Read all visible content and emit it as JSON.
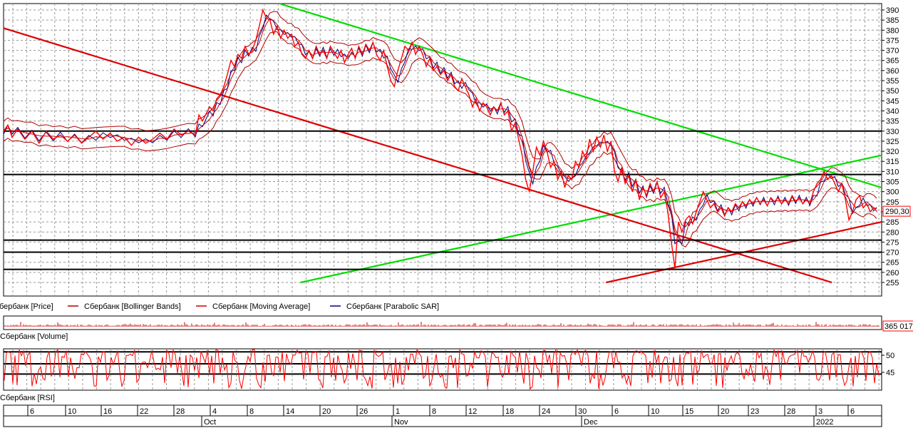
{
  "chart_data": [
    {
      "type": "line",
      "panel": "price",
      "ylim": [
        255,
        392
      ],
      "y_ticks": [
        390,
        385,
        380,
        375,
        370,
        365,
        360,
        355,
        350,
        345,
        340,
        335,
        330,
        325,
        320,
        315,
        310,
        305,
        300,
        295,
        290,
        285,
        280,
        275,
        270,
        265,
        260,
        255
      ],
      "last_price_label": "290,30",
      "legend": [
        {
          "label": "Сбербанк [Price]",
          "color": "#ff0000"
        },
        {
          "label": "Сбербанк [Bollinger Bands]",
          "color": "#b00000"
        },
        {
          "label": "Сбербанк [Moving Average]",
          "color": "#cc0000"
        },
        {
          "label": "Сбербанк [Parabolic SAR]",
          "color": "#000080"
        }
      ],
      "series": [
        {
          "name": "Сбербанк [Price]",
          "color": "#ff0000",
          "points": [
            [
              0,
              330
            ],
            [
              6,
              333
            ],
            [
              12,
              327
            ],
            [
              20,
              331
            ],
            [
              30,
              326
            ],
            [
              40,
              330
            ],
            [
              50,
              324
            ],
            [
              60,
              330
            ],
            [
              70,
              326
            ],
            [
              80,
              328
            ],
            [
              90,
              325
            ],
            [
              100,
              328
            ],
            [
              110,
              324
            ],
            [
              120,
              327
            ],
            [
              130,
              330
            ],
            [
              140,
              326
            ],
            [
              150,
              329
            ],
            [
              160,
              325
            ],
            [
              170,
              327
            ],
            [
              180,
              323
            ],
            [
              190,
              327
            ],
            [
              200,
              324
            ],
            [
              210,
              326
            ],
            [
              220,
              329
            ],
            [
              230,
              326
            ],
            [
              240,
              331
            ],
            [
              250,
              328
            ],
            [
              260,
              330
            ],
            [
              270,
              328
            ],
            [
              275,
              338
            ],
            [
              280,
              335
            ],
            [
              290,
              342
            ],
            [
              295,
              340
            ],
            [
              300,
              346
            ],
            [
              305,
              348
            ],
            [
              310,
              352
            ],
            [
              315,
              358
            ],
            [
              320,
              365
            ],
            [
              325,
              362
            ],
            [
              330,
              368
            ],
            [
              335,
              366
            ],
            [
              340,
              372
            ],
            [
              345,
              368
            ],
            [
              350,
              370
            ],
            [
              355,
              375
            ],
            [
              360,
              382
            ],
            [
              365,
              390
            ],
            [
              370,
              386
            ],
            [
              375,
              385
            ],
            [
              380,
              378
            ],
            [
              385,
              382
            ],
            [
              390,
              376
            ],
            [
              395,
              380
            ],
            [
              400,
              376
            ],
            [
              405,
              378
            ],
            [
              410,
              372
            ],
            [
              415,
              374
            ],
            [
              420,
              368
            ],
            [
              425,
              366
            ],
            [
              430,
              370
            ],
            [
              435,
              366
            ],
            [
              440,
              372
            ],
            [
              445,
              368
            ],
            [
              450,
              370
            ],
            [
              455,
              366
            ],
            [
              460,
              372
            ],
            [
              465,
              369
            ],
            [
              470,
              366
            ],
            [
              475,
              370
            ],
            [
              480,
              364
            ],
            [
              485,
              368
            ],
            [
              490,
              371
            ],
            [
              495,
              366
            ],
            [
              500,
              372
            ],
            [
              505,
              368
            ],
            [
              510,
              373
            ],
            [
              515,
              370
            ],
            [
              520,
              374
            ],
            [
              525,
              368
            ],
            [
              530,
              365
            ],
            [
              535,
              370
            ],
            [
              540,
              362
            ],
            [
              545,
              355
            ],
            [
              550,
              352
            ],
            [
              555,
              360
            ],
            [
              560,
              366
            ],
            [
              565,
              372
            ],
            [
              570,
              370
            ],
            [
              575,
              374
            ],
            [
              580,
              368
            ],
            [
              585,
              372
            ],
            [
              590,
              368
            ],
            [
              595,
              362
            ],
            [
              600,
              366
            ],
            [
              605,
              360
            ],
            [
              610,
              362
            ],
            [
              615,
              358
            ],
            [
              620,
              360
            ],
            [
              625,
              355
            ],
            [
              630,
              358
            ],
            [
              635,
              352
            ],
            [
              640,
              350
            ],
            [
              645,
              356
            ],
            [
              650,
              352
            ],
            [
              655,
              348
            ],
            [
              660,
              342
            ],
            [
              665,
              346
            ],
            [
              670,
              340
            ],
            [
              675,
              344
            ],
            [
              680,
              342
            ],
            [
              685,
              338
            ],
            [
              690,
              342
            ],
            [
              695,
              340
            ],
            [
              700,
              344
            ],
            [
              705,
              338
            ],
            [
              710,
              340
            ],
            [
              715,
              330
            ],
            [
              720,
              334
            ],
            [
              725,
              326
            ],
            [
              730,
              318
            ],
            [
              735,
              306
            ],
            [
              740,
              300
            ],
            [
              745,
              310
            ],
            [
              750,
              322
            ],
            [
              755,
              318
            ],
            [
              760,
              325
            ],
            [
              765,
              320
            ],
            [
              770,
              312
            ],
            [
              775,
              315
            ],
            [
              780,
              306
            ],
            [
              785,
              310
            ],
            [
              790,
              302
            ],
            [
              795,
              308
            ],
            [
              800,
              306
            ],
            [
              805,
              315
            ],
            [
              810,
              312
            ],
            [
              815,
              320
            ],
            [
              820,
              316
            ],
            [
              825,
              326
            ],
            [
              830,
              320
            ],
            [
              835,
              327
            ],
            [
              840,
              322
            ],
            [
              845,
              328
            ],
            [
              850,
              320
            ],
            [
              855,
              325
            ],
            [
              860,
              310
            ],
            [
              865,
              305
            ],
            [
              870,
              312
            ],
            [
              875,
              304
            ],
            [
              880,
              308
            ],
            [
              885,
              300
            ],
            [
              890,
              306
            ],
            [
              895,
              296
            ],
            [
              900,
              302
            ],
            [
              905,
              298
            ],
            [
              910,
              304
            ],
            [
              915,
              300
            ],
            [
              920,
              305
            ],
            [
              925,
              297
            ],
            [
              930,
              300
            ],
            [
              935,
              290
            ],
            [
              940,
              275
            ],
            [
              945,
              262
            ],
            [
              950,
              285
            ],
            [
              955,
              280
            ],
            [
              960,
              286
            ],
            [
              965,
              288
            ],
            [
              970,
              284
            ],
            [
              975,
              290
            ],
            [
              980,
              295
            ],
            [
              985,
              300
            ],
            [
              990,
              296
            ],
            [
              995,
              292
            ],
            [
              1000,
              294
            ],
            [
              1005,
              290
            ],
            [
              1010,
              292
            ],
            [
              1015,
              288
            ],
            [
              1020,
              292
            ],
            [
              1025,
              290
            ],
            [
              1030,
              294
            ],
            [
              1035,
              292
            ],
            [
              1040,
              295
            ],
            [
              1045,
              293
            ],
            [
              1050,
              296
            ],
            [
              1055,
              294
            ],
            [
              1060,
              297
            ],
            [
              1065,
              294
            ],
            [
              1070,
              296
            ],
            [
              1075,
              293
            ],
            [
              1080,
              297
            ],
            [
              1085,
              295
            ],
            [
              1090,
              297
            ],
            [
              1095,
              294
            ],
            [
              1100,
              296
            ],
            [
              1105,
              294
            ],
            [
              1110,
              298
            ],
            [
              1115,
              295
            ],
            [
              1120,
              297
            ],
            [
              1125,
              294
            ],
            [
              1130,
              296
            ],
            [
              1135,
              294
            ],
            [
              1140,
              300
            ],
            [
              1145,
              304
            ],
            [
              1150,
              306
            ],
            [
              1155,
              310
            ],
            [
              1160,
              306
            ],
            [
              1165,
              308
            ],
            [
              1170,
              304
            ],
            [
              1175,
              300
            ],
            [
              1180,
              304
            ],
            [
              1185,
              296
            ],
            [
              1190,
              286
            ],
            [
              1195,
              290
            ],
            [
              1200,
              296
            ],
            [
              1205,
              298
            ],
            [
              1210,
              292
            ],
            [
              1215,
              294
            ],
            [
              1220,
              290
            ],
            [
              1225,
              292
            ],
            [
              1229,
              290.3
            ]
          ]
        }
      ],
      "trendlines": [
        {
          "color": "#00dd00",
          "from": [
            390,
            393
          ],
          "to": [
            1236,
            302
          ]
        },
        {
          "color": "#00dd00",
          "from": [
            418,
            255
          ],
          "to": [
            1236,
            318
          ]
        },
        {
          "color": "#dd0000",
          "from": [
            0,
            381
          ],
          "to": [
            1166,
            255
          ]
        },
        {
          "color": "#dd0000",
          "from": [
            848,
            255
          ],
          "to": [
            1236,
            285
          ]
        }
      ],
      "horizontal_levels": [
        330,
        308.5,
        276,
        270,
        261.5
      ]
    },
    {
      "type": "bar",
      "panel": "volume",
      "title": "Сбербанк [Volume]",
      "last_value_label": "365 017"
    },
    {
      "type": "line",
      "panel": "rsi",
      "title": "Сбербанк [RSI]",
      "y_ticks": [
        50,
        45
      ],
      "levels": [
        51,
        47.5,
        44.5
      ]
    },
    {
      "type": "axis",
      "panel": "time",
      "day_ticks": [
        "6",
        "10",
        "16",
        "22",
        "28",
        "4",
        "8",
        "14",
        "20",
        "26",
        "1",
        "8",
        "12",
        "18",
        "24",
        "30",
        "6",
        "10",
        "15",
        "20",
        "23",
        "28",
        "3",
        "6"
      ],
      "months": [
        "Oct",
        "Nov",
        "Dec",
        "2022"
      ]
    }
  ]
}
